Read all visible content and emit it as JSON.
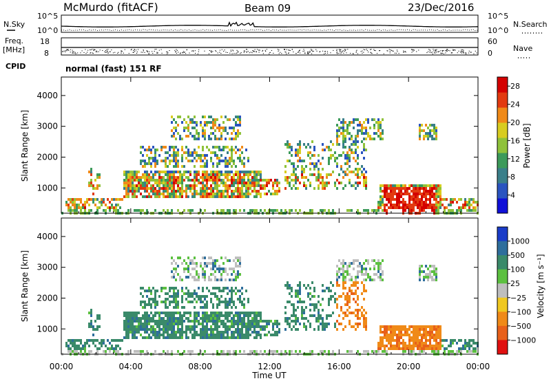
{
  "header": {
    "title": "McMurdo (fitACF)",
    "beam": "Beam 09",
    "date": "23/Dec/2016"
  },
  "noise_panel": {
    "left_label": "N.Sky",
    "right_label": "N.Search",
    "left_ticks": [
      "10^5",
      "10^0"
    ],
    "right_ticks": [
      "10^5",
      "10^0"
    ]
  },
  "freq_panel": {
    "left_label_1": "Freq.",
    "left_label_2": "[MHz]",
    "right_label": "Nave",
    "left_ticks": [
      "18",
      "8"
    ],
    "right_ticks": [
      "60",
      "0"
    ]
  },
  "cpid_panel": {
    "label": "CPID",
    "text": "normal (fast) 151 RF"
  },
  "chart_data": [
    {
      "type": "heatmap",
      "quantity": "Power",
      "ylabel": "Slant Range [km]",
      "ylim": [
        180,
        4600
      ],
      "yticks": [
        "4000",
        "3000",
        "2000",
        "1000"
      ],
      "ytick_values": [
        4000,
        3000,
        2000,
        1000
      ],
      "xlim": [
        0,
        24
      ],
      "colorbar": {
        "label": "Power [dB]",
        "ticks": [
          "28",
          "24",
          "20",
          "16",
          "12",
          "8",
          "4"
        ],
        "tick_values": [
          28,
          24,
          20,
          16,
          12,
          8,
          4
        ],
        "range": [
          0,
          30
        ],
        "colors": [
          "#1010d8",
          "#2a54c0",
          "#3a7f8a",
          "#3c9a5a",
          "#8fc23a",
          "#d8cc20",
          "#f08a18",
          "#e23a10",
          "#d40000"
        ]
      }
    },
    {
      "type": "heatmap",
      "quantity": "Velocity",
      "ylabel": "Slant Range [km]",
      "ylim": [
        180,
        4600
      ],
      "yticks": [
        "4000",
        "3000",
        "2000",
        "1000"
      ],
      "ytick_values": [
        4000,
        3000,
        2000,
        1000
      ],
      "xlim": [
        0,
        24
      ],
      "xlabel": "Time UT",
      "xticks": [
        "00:00",
        "04:00",
        "08:00",
        "12:00",
        "16:00",
        "20:00",
        "00:00"
      ],
      "xtick_values": [
        0,
        4,
        8,
        12,
        16,
        20,
        24
      ],
      "colorbar": {
        "label": "Velocity [m s⁻¹]",
        "ticks": [
          "1000",
          "500",
          "100",
          "25",
          "−25",
          "−100",
          "−500",
          "−1000"
        ],
        "colors": [
          "#1a3cc8",
          "#2e6e9c",
          "#3a8a6a",
          "#5cc040",
          "#bebebe",
          "#f0c820",
          "#f08a18",
          "#e8601a",
          "#e01010"
        ]
      }
    }
  ]
}
